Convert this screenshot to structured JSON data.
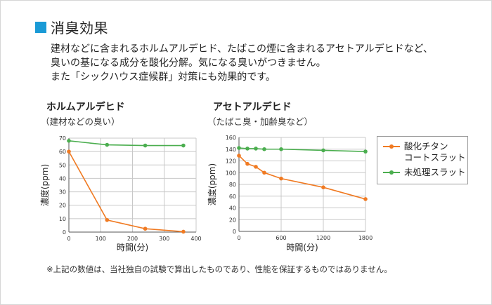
{
  "header": {
    "title": "消臭効果",
    "lines": [
      "建材などに含まれるホルムアルデヒド、たばこの煙に含まれるアセトアルデヒドなど、",
      "臭いの基になる成分を酸化分解。気になる臭いがつきません。",
      "また「シックハウス症候群」対策にも効果的です。"
    ]
  },
  "colors": {
    "accent": "#1a9ad6",
    "coated": "#f07a22",
    "untreated": "#4bae4f",
    "grid": "#c8c8c8",
    "axis": "#555555"
  },
  "legend": {
    "items": [
      {
        "label_line1": "酸化チタン",
        "label_line2": "コートスラット",
        "color": "#f07a22"
      },
      {
        "label_line1": "未処理スラット",
        "label_line2": "",
        "color": "#4bae4f"
      }
    ]
  },
  "chart_data": [
    {
      "type": "line",
      "title": "ホルムアルデヒド",
      "subtitle": "（建材などの臭い）",
      "xlabel": "時間(分)",
      "ylabel": "濃度(ppm)",
      "xlim": [
        0,
        400
      ],
      "ylim": [
        0,
        70
      ],
      "xticks": [
        0,
        100,
        200,
        300,
        400
      ],
      "yticks": [
        0,
        10,
        20,
        30,
        40,
        50,
        60,
        70
      ],
      "grid": true,
      "series": [
        {
          "name": "酸化チタンコートスラット",
          "color": "#f07a22",
          "x": [
            0,
            120,
            240,
            360
          ],
          "y": [
            60,
            9,
            2.5,
            0.3
          ]
        },
        {
          "name": "未処理スラット",
          "color": "#4bae4f",
          "x": [
            0,
            120,
            240,
            360
          ],
          "y": [
            68,
            65,
            64.5,
            64.5
          ]
        }
      ]
    },
    {
      "type": "line",
      "title": "アセトアルデヒド",
      "subtitle": "（たばこ臭・加齢臭など）",
      "xlabel": "時間(分)",
      "ylabel": "濃度(ppm)",
      "xlim": [
        0,
        1800
      ],
      "ylim": [
        0,
        160
      ],
      "xticks": [
        0,
        600,
        1200,
        1800
      ],
      "yticks": [
        0,
        20,
        40,
        60,
        80,
        100,
        120,
        140,
        160
      ],
      "grid": true,
      "series": [
        {
          "name": "酸化チタンコートスラット",
          "color": "#f07a22",
          "x": [
            0,
            120,
            240,
            360,
            600,
            1200,
            1800
          ],
          "y": [
            129,
            115,
            110,
            100,
            90,
            75,
            55
          ]
        },
        {
          "name": "未処理スラット",
          "color": "#4bae4f",
          "x": [
            0,
            120,
            240,
            360,
            600,
            1200,
            1800
          ],
          "y": [
            142,
            141,
            141,
            140,
            140,
            138,
            136
          ]
        }
      ]
    }
  ],
  "footnote": "※上記の数値は、当社独自の試験で算出したものであり、性能を保証するものではありません。"
}
